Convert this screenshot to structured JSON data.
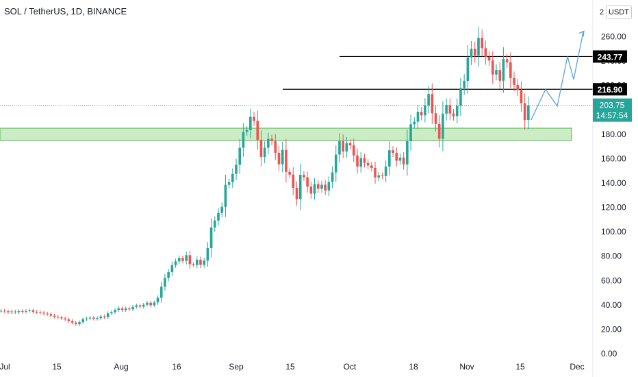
{
  "header": {
    "symbol_title": "SOL / TetherUS, 1D, BINANCE"
  },
  "price_scale": {
    "currency_button": "USDT",
    "partial_top_label": "2"
  },
  "colors": {
    "up": "#26a69a",
    "down": "#ef5350",
    "support_zone_fill": "#b9e6b2",
    "support_zone_border": "#4caf50",
    "projection": "#5ba4d6",
    "level_line": "#000000",
    "last_price_bg": "#26a69a"
  },
  "chart_data": {
    "type": "candlestick",
    "symbol": "SOL / TetherUS",
    "interval": "1D",
    "exchange": "BINANCE",
    "ylim": [
      0,
      270
    ],
    "y_ticks": [
      "0.00",
      "20.00",
      "40.00",
      "60.00",
      "80.00",
      "100.00",
      "120.00",
      "140.00",
      "160.00",
      "180.00",
      "200.00",
      "220.00",
      "240.00",
      "260.00"
    ],
    "x_ticks": [
      "Jul",
      "15",
      "Aug",
      "16",
      "Sep",
      "15",
      "Oct",
      "18",
      "Nov",
      "15",
      "Dec"
    ],
    "grid": false,
    "series_close": [
      35.2,
      34.8,
      34.1,
      34.6,
      34.0,
      34.9,
      34.4,
      35.0,
      35.6,
      34.3,
      34.1,
      33.6,
      32.9,
      32.4,
      31.1,
      30.4,
      29.8,
      29.0,
      28.2,
      26.9,
      25.5,
      24.2,
      25.8,
      28.4,
      28.9,
      29.5,
      28.7,
      29.1,
      30.5,
      30.0,
      33.1,
      34.1,
      35.9,
      37.2,
      35.8,
      37.1,
      36.4,
      38.4,
      39.6,
      38.6,
      40.1,
      41.8,
      39.7,
      42.0,
      45.8,
      55.0,
      62.1,
      66.9,
      72.6,
      75.7,
      78.5,
      76.1,
      80.8,
      73.4,
      72.7,
      77.1,
      72.9,
      76.3,
      86.6,
      103.6,
      109.2,
      115.4,
      120.5,
      138.5,
      140.6,
      147.5,
      155.0,
      168.9,
      181.9,
      183.5,
      194.3,
      191.0,
      175.5,
      161.4,
      169.0,
      176.2,
      174.3,
      164.8,
      155.4,
      167.2,
      149.1,
      146.9,
      136.0,
      126.8,
      146.7,
      144.7,
      137.0,
      131.3,
      139.1,
      135.3,
      138.6,
      133.9,
      140.9,
      148.7,
      163.3,
      174.3,
      165.8,
      172.7,
      170.9,
      162.6,
      153.4,
      160.4,
      156.5,
      154.4,
      152.4,
      144.5,
      146.3,
      145.7,
      153.5,
      166.9,
      164.7,
      158.3,
      160.9,
      155.3,
      174.3,
      188.2,
      190.3,
      198.4,
      195.5,
      203.6,
      213.0,
      197.2,
      188.5,
      176.3,
      196.9,
      204.0,
      197.0,
      194.9,
      203.3,
      217.8,
      223.8,
      243.0,
      250.2,
      244.5,
      259.1,
      250.6,
      243.4,
      240.5,
      229.0,
      232.7,
      223.9,
      241.6,
      239.0,
      226.1,
      220.5,
      216.3,
      205.5,
      191.7,
      203.75
    ],
    "annotations": {
      "support_zone": [
        175,
        185
      ],
      "resistance_levels": [
        {
          "value": 216.9,
          "label": "216.90"
        },
        {
          "value": 243.77,
          "label": "243.77"
        }
      ],
      "last_price": {
        "value": 203.75,
        "label": "203.75",
        "countdown": "14:57:54"
      },
      "projection_path": [
        191.7,
        216.9,
        203.0,
        243.77,
        225.0,
        264.0
      ]
    }
  }
}
